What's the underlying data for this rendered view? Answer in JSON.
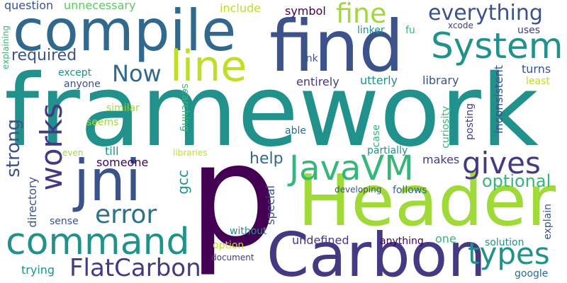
{
  "palette": {
    "purple": "#440154",
    "indigo": "#3b528b",
    "navy": "#443a83",
    "blue": "#31688e",
    "teal": "#21918c",
    "green": "#35b779",
    "lime": "#a0da39",
    "yellow": "#bddf26"
  },
  "words": [
    {
      "text": "framework",
      "color": "#21918c"
    },
    {
      "text": "p",
      "color": "#440154"
    },
    {
      "text": "Header",
      "color": "#a0da39"
    },
    {
      "text": "Carbon",
      "color": "#443a83"
    },
    {
      "text": "find",
      "color": "#3b528b"
    },
    {
      "text": "compile",
      "color": "#31688e"
    },
    {
      "text": "jni",
      "color": "#3b528b"
    },
    {
      "text": "command",
      "color": "#21918c"
    },
    {
      "text": "line",
      "color": "#bddf26"
    },
    {
      "text": "System",
      "color": "#21918c"
    },
    {
      "text": "JavaVM",
      "color": "#35b779"
    },
    {
      "text": "works",
      "color": "#443a83"
    },
    {
      "text": "FlatCarbon",
      "color": "#443a83"
    },
    {
      "text": "types",
      "color": "#21918c"
    },
    {
      "text": "fine",
      "color": "#a0da39"
    },
    {
      "text": "gives",
      "color": "#443a83"
    },
    {
      "text": "error",
      "color": "#2c728e"
    },
    {
      "text": "everything",
      "color": "#3b528b"
    },
    {
      "text": "Now",
      "color": "#31688e"
    },
    {
      "text": "required",
      "color": "#3b528b"
    },
    {
      "text": "optional",
      "color": "#35b779"
    },
    {
      "text": "strong",
      "color": "#3b528b"
    },
    {
      "text": "help",
      "color": "#31688e"
    },
    {
      "text": "question",
      "color": "#3b528b"
    },
    {
      "text": "unnecessary",
      "color": "#5ec962"
    },
    {
      "text": "include",
      "color": "#bddf26"
    },
    {
      "text": "symbol",
      "color": "#440154"
    },
    {
      "text": "linker",
      "color": "#21918c"
    },
    {
      "text": "fu",
      "color": "#35b779"
    },
    {
      "text": "xcode",
      "color": "#443a83"
    },
    {
      "text": "uses",
      "color": "#443a83"
    },
    {
      "text": "explaining",
      "color": "#35b779"
    },
    {
      "text": "link",
      "color": "#3b528b"
    },
    {
      "text": "except",
      "color": "#21918c"
    },
    {
      "text": "anyone",
      "color": "#3b528b"
    },
    {
      "text": "entirely",
      "color": "#443a83"
    },
    {
      "text": "utterly",
      "color": "#21918c"
    },
    {
      "text": "library",
      "color": "#3b528b"
    },
    {
      "text": "turns",
      "color": "#3b528b"
    },
    {
      "text": "least",
      "color": "#bddf26"
    },
    {
      "text": "inconsistent",
      "color": "#3b528b"
    },
    {
      "text": "similar",
      "color": "#a0da39"
    },
    {
      "text": "seems",
      "color": "#a0da39"
    },
    {
      "text": "searching",
      "color": "#35b779"
    },
    {
      "text": "curiosity",
      "color": "#35b779"
    },
    {
      "text": "posting",
      "color": "#443a83"
    },
    {
      "text": "able",
      "color": "#31688e"
    },
    {
      "text": "case",
      "color": "#35b779"
    },
    {
      "text": "solution",
      "color": "#21918c"
    },
    {
      "text": "even",
      "color": "#a0da39"
    },
    {
      "text": "till",
      "color": "#21918c"
    },
    {
      "text": "libraries",
      "color": "#bddf26"
    },
    {
      "text": "partially",
      "color": "#21918c"
    },
    {
      "text": "makes",
      "color": "#443a83"
    },
    {
      "text": "someone",
      "color": "#440154"
    },
    {
      "text": "gcc",
      "color": "#21918c"
    },
    {
      "text": "directory",
      "color": "#3b528b"
    },
    {
      "text": "developing",
      "color": "#3b528b"
    },
    {
      "text": "follows",
      "color": "#31688e"
    },
    {
      "text": "special",
      "color": "#3b528b"
    },
    {
      "text": "sense",
      "color": "#3b528b"
    },
    {
      "text": "without",
      "color": "#21918c"
    },
    {
      "text": "explain",
      "color": "#3b528b"
    },
    {
      "text": "option",
      "color": "#bddf26"
    },
    {
      "text": "undefined",
      "color": "#443a83"
    },
    {
      "text": "anything",
      "color": "#440154"
    },
    {
      "text": "one",
      "color": "#35b779"
    },
    {
      "text": "document",
      "color": "#443a83"
    },
    {
      "text": "trying",
      "color": "#21918c"
    },
    {
      "text": "google",
      "color": "#31688e"
    }
  ]
}
